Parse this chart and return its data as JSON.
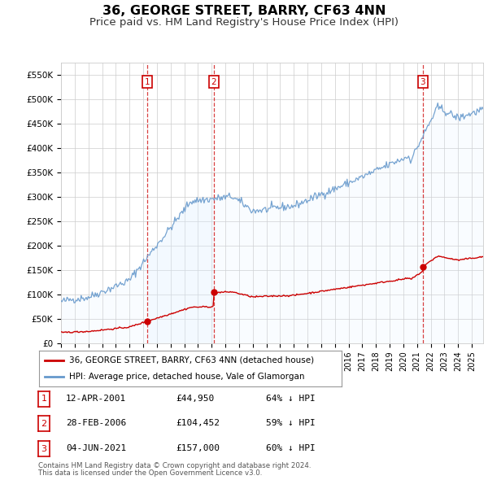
{
  "title": "36, GEORGE STREET, BARRY, CF63 4NN",
  "subtitle": "Price paid vs. HM Land Registry's House Price Index (HPI)",
  "title_fontsize": 11.5,
  "subtitle_fontsize": 9.5,
  "ylabel_ticks": [
    "£0",
    "£50K",
    "£100K",
    "£150K",
    "£200K",
    "£250K",
    "£300K",
    "£350K",
    "£400K",
    "£450K",
    "£500K",
    "£550K"
  ],
  "ytick_values": [
    0,
    50000,
    100000,
    150000,
    200000,
    250000,
    300000,
    350000,
    400000,
    450000,
    500000,
    550000
  ],
  "ylim": [
    0,
    575000
  ],
  "xlim_start": 1995.0,
  "xlim_end": 2025.83,
  "sale_dates": [
    2001.28,
    2006.16,
    2021.42
  ],
  "sale_labels": [
    "1",
    "2",
    "3"
  ],
  "sale_prices": [
    44950,
    104452,
    157000
  ],
  "sale_date_strs": [
    "12-APR-2001",
    "28-FEB-2006",
    "04-JUN-2021"
  ],
  "sale_pct": [
    "64% ↓ HPI",
    "59% ↓ HPI",
    "60% ↓ HPI"
  ],
  "legend_line1": "36, GEORGE STREET, BARRY, CF63 4NN (detached house)",
  "legend_line2": "HPI: Average price, detached house, Vale of Glamorgan",
  "footer1": "Contains HM Land Registry data © Crown copyright and database right 2024.",
  "footer2": "This data is licensed under the Open Government Licence v3.0.",
  "red_color": "#cc0000",
  "blue_color": "#6699cc",
  "blue_fill": "#ddeeff",
  "grid_color": "#cccccc",
  "bg_color": "#ffffff"
}
